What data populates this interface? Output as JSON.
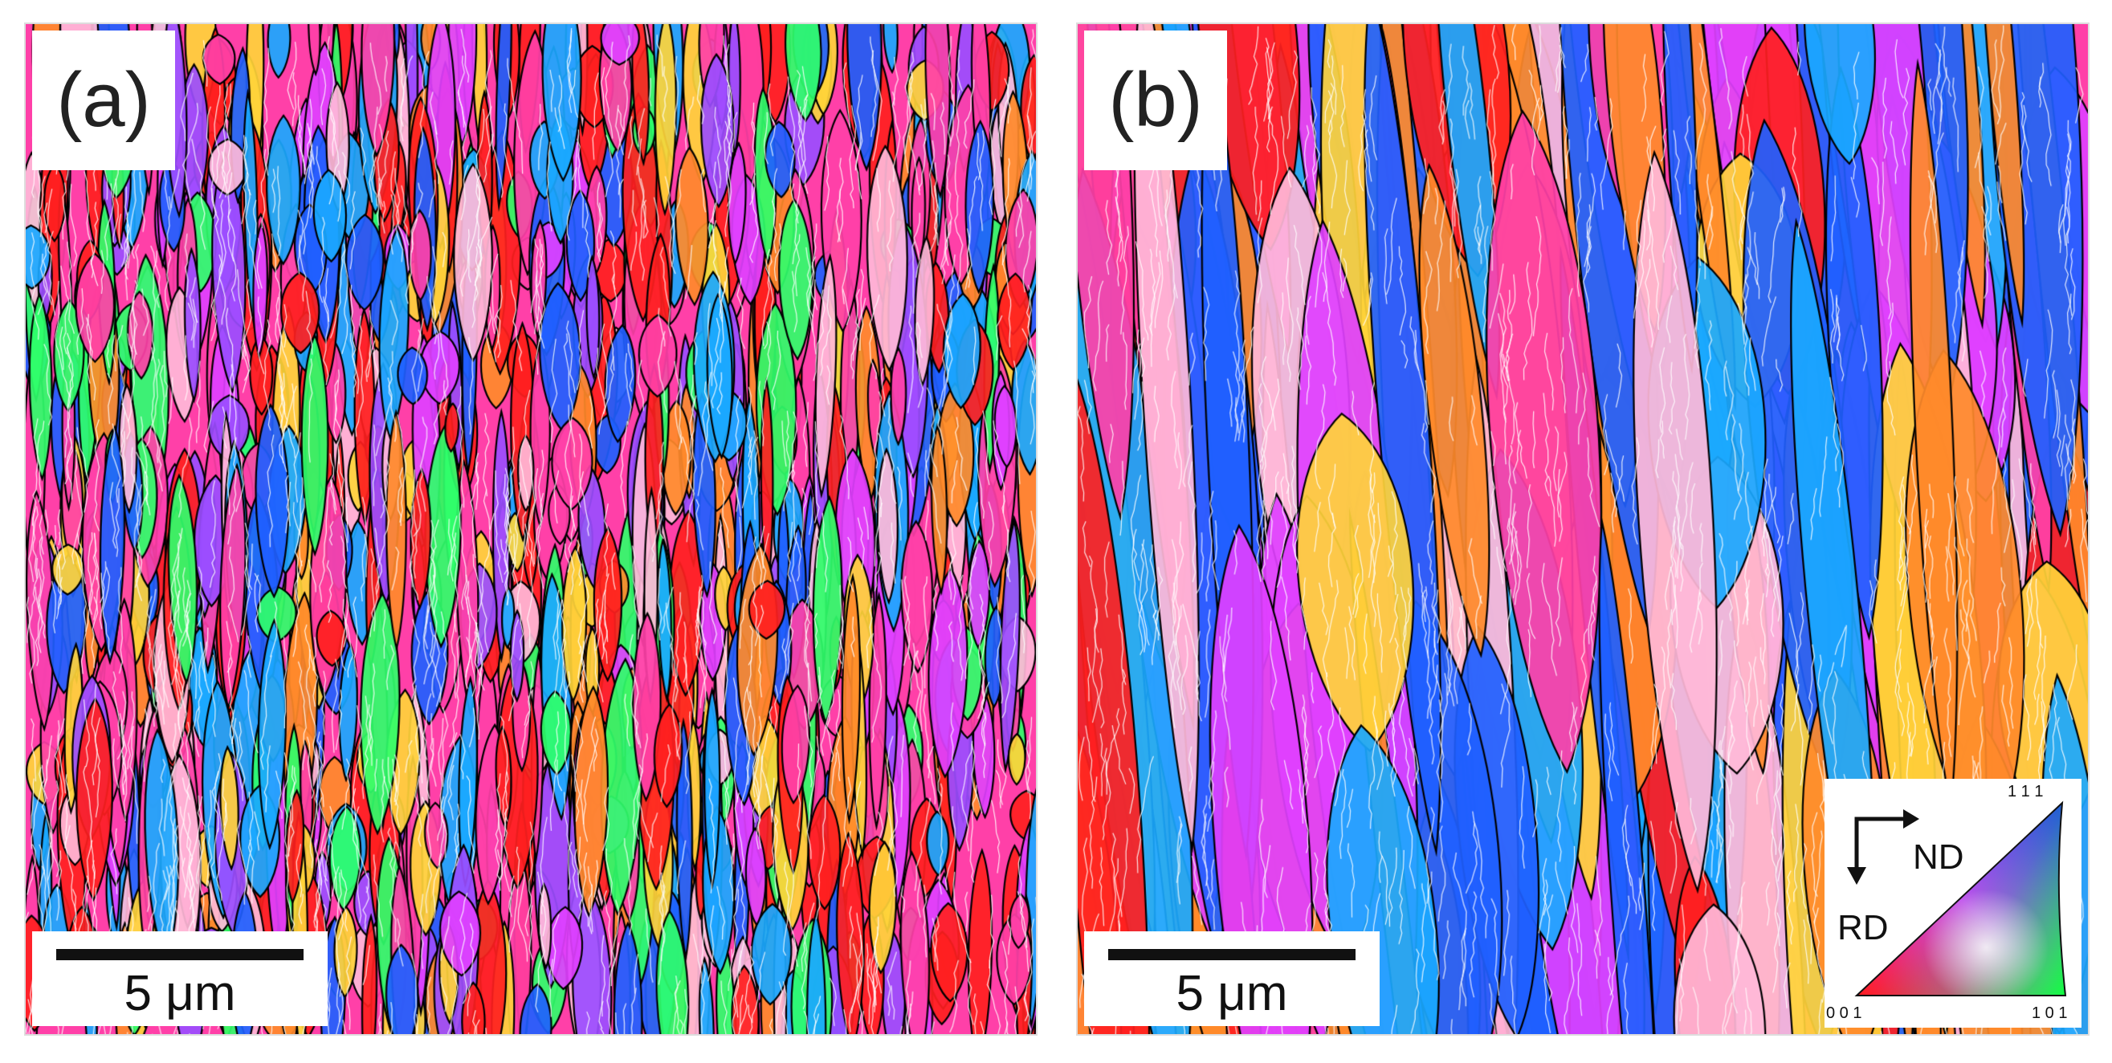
{
  "panels": [
    {
      "id": "a",
      "label": "(a)",
      "scale_bar": "5 μm"
    },
    {
      "id": "b",
      "label": "(b)",
      "scale_bar": "5 μm"
    }
  ],
  "legend": {
    "axis_horizontal": "ND",
    "axis_vertical": "RD",
    "ipf_corner_top": "1 1 1",
    "ipf_corner_left": "0 0 1",
    "ipf_corner_right": "1 0 1"
  },
  "colors": {
    "red": "#ff2020",
    "orange": "#ff8a2a",
    "pink": "#ff40a8",
    "magenta": "#e040ff",
    "violet": "#9b4dff",
    "blue": "#1f5fff",
    "cyan": "#1aa8ff",
    "green": "#2fff6a",
    "yellow": "#ffd43a",
    "light": "#ffb8d8",
    "boundary_high": "#000000",
    "boundary_low": "#ffffff"
  }
}
